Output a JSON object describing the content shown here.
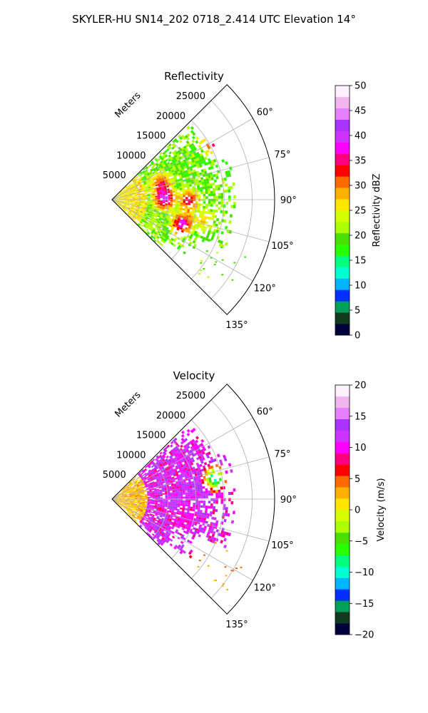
{
  "suptitle": "SKYLER-HU  SN14_202  0718_2.414 UTC Elevation 14°",
  "radius_label": "Meters",
  "chart_data": [
    {
      "type": "heatmap",
      "projection": "polar-sector",
      "title": "Reflectivity",
      "theta_ticks": [
        "60°",
        "75°",
        "90°",
        "105°",
        "120°",
        "135°"
      ],
      "theta_values": [
        60,
        75,
        90,
        105,
        120,
        135
      ],
      "theta_range": [
        45,
        135
      ],
      "r_ticks": [
        "5000",
        "10000",
        "15000",
        "20000",
        "25000"
      ],
      "r_values": [
        5000,
        10000,
        15000,
        20000,
        25000
      ],
      "r_max": 29000,
      "grid": true,
      "colorbar": {
        "label": "Reflectivity dBZ",
        "ticks": [
          "0",
          "5",
          "10",
          "15",
          "20",
          "25",
          "30",
          "35",
          "40",
          "45",
          "50"
        ],
        "range": [
          0,
          50
        ],
        "colors": [
          "#00003c",
          "#0f3c1e",
          "#00a05a",
          "#0030ff",
          "#00b4ff",
          "#00ffd2",
          "#00ff7f",
          "#27ff00",
          "#48e000",
          "#aaff00",
          "#d7ff00",
          "#ffe600",
          "#ffb000",
          "#ff6a00",
          "#ff0000",
          "#ff0080",
          "#ff00ff",
          "#cc33ff",
          "#aa33ff",
          "#e680ff",
          "#f0b4f0",
          "#fff0ff"
        ]
      },
      "echo_regions": [
        {
          "theta": 60,
          "r": 20500,
          "value": 38
        },
        {
          "theta": 72,
          "r": 9000,
          "value": 35
        },
        {
          "theta": 88,
          "r": 9200,
          "value": 42
        },
        {
          "theta": 90,
          "r": 13500,
          "value": 36
        },
        {
          "theta": 108,
          "r": 13000,
          "value": 40
        },
        {
          "theta": 102,
          "r": 16500,
          "value": 28
        },
        {
          "theta": 120,
          "r": 8000,
          "value": 22
        }
      ]
    },
    {
      "type": "heatmap",
      "projection": "polar-sector",
      "title": "Velocity",
      "theta_ticks": [
        "60°",
        "75°",
        "90°",
        "105°",
        "120°",
        "135°"
      ],
      "theta_values": [
        60,
        75,
        90,
        105,
        120,
        135
      ],
      "theta_range": [
        45,
        135
      ],
      "r_ticks": [
        "5000",
        "10000",
        "15000",
        "20000",
        "25000"
      ],
      "r_values": [
        5000,
        10000,
        15000,
        20000,
        25000
      ],
      "r_max": 29000,
      "grid": true,
      "colorbar": {
        "label": "Velocity (m/s)",
        "ticks": [
          "−20",
          "−15",
          "−10",
          "−5",
          "0",
          "5",
          "10",
          "15",
          "20"
        ],
        "range": [
          -20,
          20
        ],
        "colors": [
          "#00003c",
          "#0f3c1e",
          "#00a05a",
          "#0030ff",
          "#00b4ff",
          "#00ffd2",
          "#00ff7f",
          "#27ff00",
          "#48e000",
          "#aaff00",
          "#d7ff00",
          "#ffe600",
          "#ffb000",
          "#ff6a00",
          "#ff0000",
          "#ff0080",
          "#ff00ff",
          "#cc33ff",
          "#aa33ff",
          "#e680ff",
          "#f0b4f0",
          "#fff0ff"
        ]
      },
      "echo_regions": [
        {
          "theta": 62,
          "r": 20000,
          "value": 10
        },
        {
          "theta": 80,
          "r": 16000,
          "value": 13
        },
        {
          "theta": 78,
          "r": 18500,
          "value": -13
        },
        {
          "theta": 92,
          "r": 11000,
          "value": 13
        },
        {
          "theta": 105,
          "r": 13000,
          "value": 9
        },
        {
          "theta": 120,
          "r": 3500,
          "value": 2
        },
        {
          "theta": 127,
          "r": 18500,
          "value": 3
        }
      ]
    }
  ]
}
